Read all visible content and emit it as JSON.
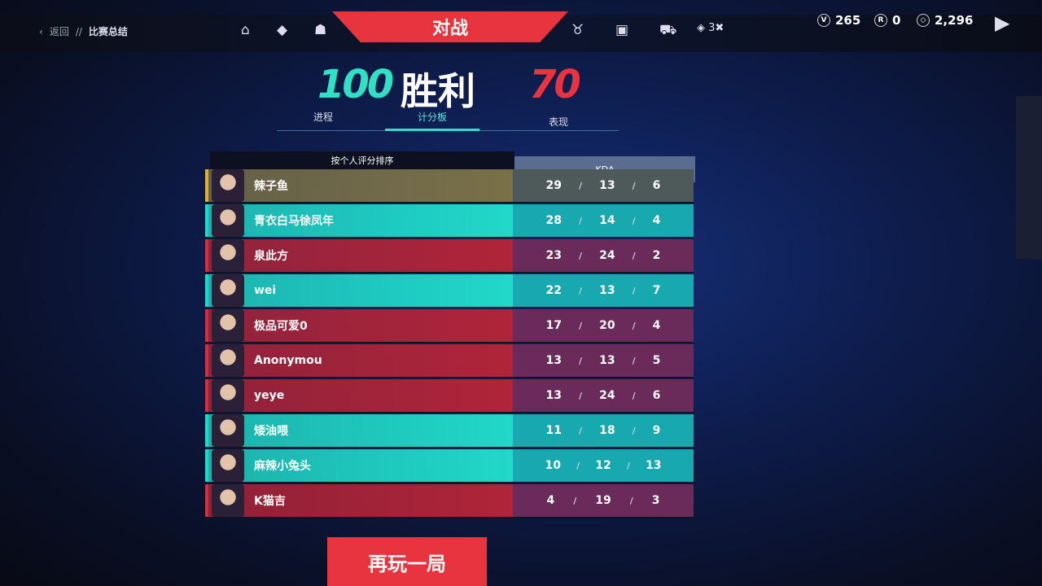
{
  "header": {
    "back_label": "返回",
    "separator": "//",
    "page": "比赛总结",
    "play_tab": "对战",
    "nav_icons": [
      "home-icon",
      "ticket-icon",
      "agent-icon",
      "trophy-icon",
      "collection-icon",
      "cart-icon"
    ],
    "level_badge": "3",
    "currencies": [
      {
        "icon": "valorant-points-icon",
        "value": "265"
      },
      {
        "icon": "radianite-icon",
        "value": "0"
      },
      {
        "icon": "kingdom-credits-icon",
        "value": "2,296"
      }
    ]
  },
  "match": {
    "team_score": "100",
    "result": "胜利",
    "enemy_score": "70",
    "team_color": "#2fe0c4",
    "enemy_color": "#e8343f"
  },
  "tabs": [
    {
      "label": "进程"
    },
    {
      "label": "计分板",
      "active": true
    },
    {
      "label": "表现"
    }
  ],
  "scoreboard": {
    "sort_label": "按个人评分排序",
    "kda_header": "KDA",
    "rows": [
      {
        "name": "辣子鱼",
        "team": "self",
        "k": "29",
        "d": "13",
        "a": "6"
      },
      {
        "name": "青衣白马徐凤年",
        "team": "ally",
        "k": "28",
        "d": "14",
        "a": "4"
      },
      {
        "name": "泉此方",
        "team": "enemy",
        "k": "23",
        "d": "24",
        "a": "2"
      },
      {
        "name": "wei",
        "team": "ally",
        "k": "22",
        "d": "13",
        "a": "7"
      },
      {
        "name": "极品可爱0",
        "team": "enemy",
        "k": "17",
        "d": "20",
        "a": "4"
      },
      {
        "name": "Anonymou",
        "team": "enemy",
        "k": "13",
        "d": "13",
        "a": "5"
      },
      {
        "name": "yeye",
        "team": "enemy",
        "k": "13",
        "d": "24",
        "a": "6"
      },
      {
        "name": "矮油喂",
        "team": "ally",
        "k": "11",
        "d": "18",
        "a": "9"
      },
      {
        "name": "麻辣小兔头",
        "team": "ally",
        "k": "10",
        "d": "12",
        "a": "13"
      },
      {
        "name": "K猫吉",
        "team": "enemy",
        "k": "4",
        "d": "19",
        "a": "3"
      }
    ]
  },
  "play_again": "再玩一局"
}
